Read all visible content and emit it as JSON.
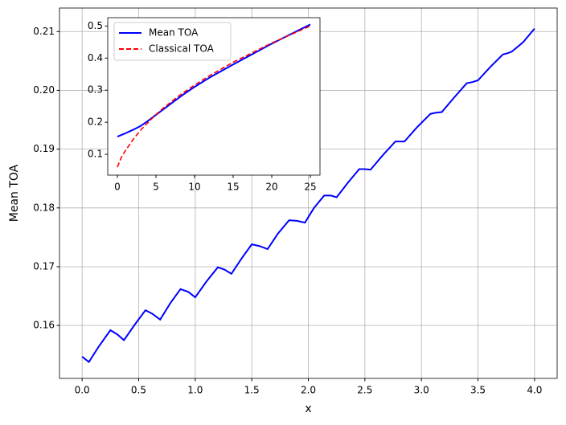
{
  "chart_data": [
    {
      "type": "line",
      "xlabel": "x",
      "ylabel": "Mean TOA",
      "grid": true,
      "x": [
        0,
        0.06,
        0.15,
        0.25,
        0.31,
        0.37,
        0.46,
        0.56,
        0.62,
        0.69,
        0.78,
        0.87,
        0.94,
        1.0,
        1.1,
        1.2,
        1.26,
        1.32,
        1.41,
        1.5,
        1.57,
        1.64,
        1.73,
        1.83,
        1.9,
        1.97,
        2.05,
        2.14,
        2.2,
        2.25,
        2.35,
        2.45,
        2.5,
        2.55,
        2.66,
        2.77,
        2.81,
        2.85,
        2.96,
        3.08,
        3.13,
        3.18,
        3.29,
        3.4,
        3.45,
        3.5,
        3.61,
        3.72,
        3.76,
        3.8,
        3.9,
        4.0
      ],
      "series": [
        {
          "color": "#0000ff",
          "linestyle": "solid",
          "values": [
            0.1547,
            0.1538,
            0.1565,
            0.1592,
            0.1585,
            0.1575,
            0.16,
            0.1626,
            0.162,
            0.161,
            0.1638,
            0.1662,
            0.1657,
            0.1648,
            0.1675,
            0.1699,
            0.1695,
            0.1688,
            0.1714,
            0.1738,
            0.1735,
            0.173,
            0.1756,
            0.1779,
            0.1778,
            0.1775,
            0.18,
            0.1821,
            0.1821,
            0.1818,
            0.1843,
            0.1866,
            0.1866,
            0.1865,
            0.189,
            0.1913,
            0.1913,
            0.1913,
            0.1937,
            0.196,
            0.1962,
            0.1963,
            0.1988,
            0.2012,
            0.2014,
            0.2017,
            0.204,
            0.2061,
            0.2063,
            0.2066,
            0.2082,
            0.2105
          ]
        }
      ],
      "xlim": [
        -0.2,
        4.2
      ],
      "ylim": [
        0.151,
        0.214
      ],
      "xticks": [
        {
          "value": 0,
          "label": "0.0"
        },
        {
          "value": 0.5,
          "label": "0.5"
        },
        {
          "value": 1,
          "label": "1.0"
        },
        {
          "value": 1.5,
          "label": "1.5"
        },
        {
          "value": 2,
          "label": "2.0"
        },
        {
          "value": 2.5,
          "label": "2.5"
        },
        {
          "value": 3,
          "label": "3.0"
        },
        {
          "value": 3.5,
          "label": "3.5"
        },
        {
          "value": 4,
          "label": "4.0"
        }
      ],
      "yticks": [
        0.16,
        0.17,
        0.18,
        0.19,
        {
          "value": 0.2,
          "label": "0.20"
        },
        0.21
      ]
    },
    {
      "type": "line",
      "grid": false,
      "legend": "upper left",
      "series": [
        {
          "name": "Mean TOA",
          "color": "#0000ff",
          "linestyle": "solid",
          "x": [
            0,
            1,
            2,
            3,
            4,
            5,
            6,
            7,
            8,
            9,
            10,
            12,
            15,
            20,
            25
          ],
          "values": [
            0.155,
            0.165,
            0.176,
            0.188,
            0.205,
            0.223,
            0.241,
            0.259,
            0.277,
            0.294,
            0.31,
            0.34,
            0.38,
            0.445,
            0.505
          ]
        },
        {
          "name": "Classical TOA",
          "color": "#ff0000",
          "linestyle": "dashed",
          "x": [
            0,
            0.5,
            1,
            2,
            3,
            4,
            5,
            6,
            8,
            10,
            12,
            15,
            20,
            25
          ],
          "values": [
            0.06,
            0.09,
            0.11,
            0.145,
            0.175,
            0.2,
            0.224,
            0.245,
            0.283,
            0.316,
            0.346,
            0.387,
            0.447,
            0.5
          ]
        }
      ],
      "xlim": [
        -1.25,
        26.25
      ],
      "ylim": [
        0.035,
        0.526
      ],
      "xticks": [
        0,
        5,
        10,
        15,
        20,
        25
      ],
      "yticks": [
        0.1,
        0.2,
        0.3,
        0.4,
        0.5
      ]
    }
  ]
}
